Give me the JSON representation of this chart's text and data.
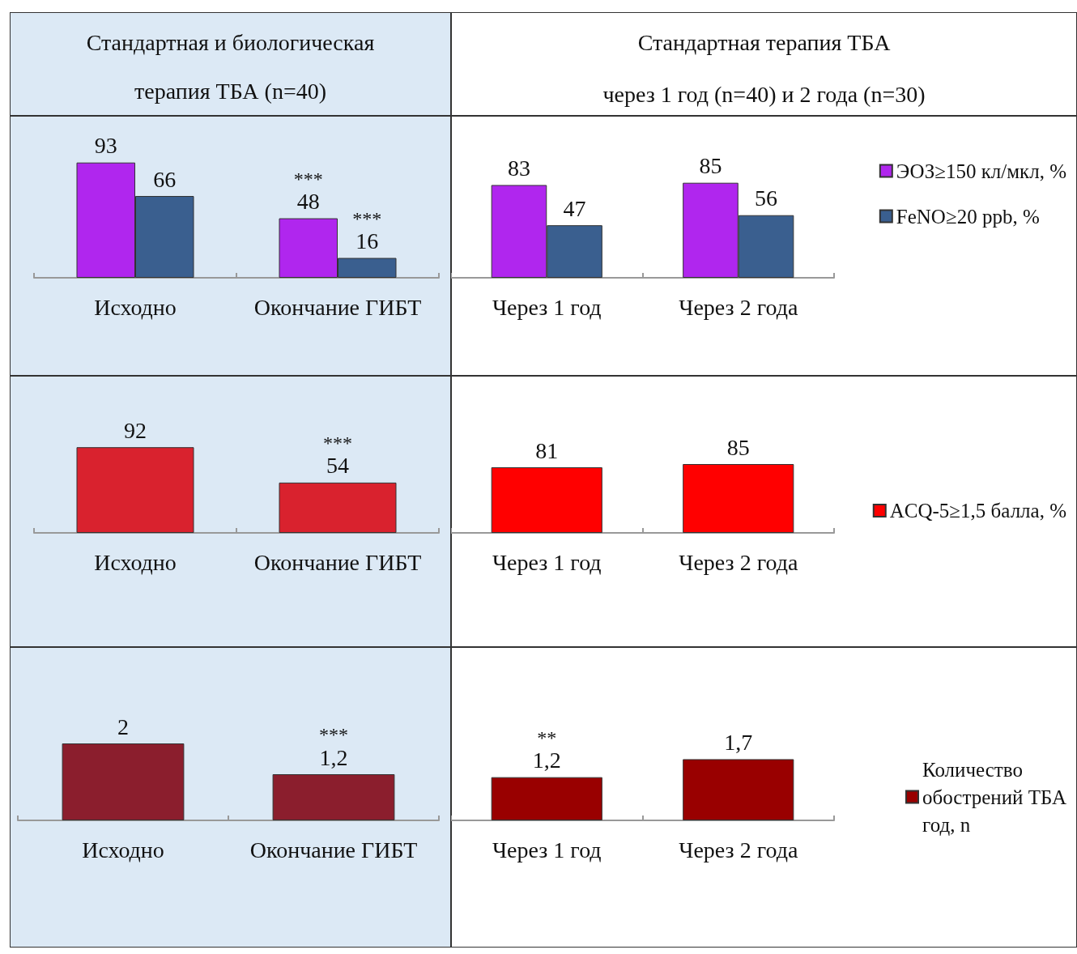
{
  "chart_data": [
    {
      "type": "bar",
      "title": "Стандартная и биологическая терапия ТБА (n=40)",
      "categories": [
        "Исходно",
        "Окончание ГИБТ"
      ],
      "data_labels": true,
      "series": [
        {
          "color": "#b026ee",
          "values": [
            93,
            48
          ]
        },
        {
          "color": "#3a5f8f",
          "values": [
            66,
            16
          ]
        }
      ],
      "annotations": [
        {
          "text": "***",
          "x": "Окончание ГИБТ",
          "y": 16
        },
        {
          "text": "***",
          "x": "Окончание ГИБТ",
          "y": 48
        }
      ]
    },
    {
      "type": "bar",
      "title": "Стандартная терапия ТБА",
      "subtitle": "через 1 год (n=40) и 2 года (n=30)",
      "categories": [
        "Через 1 год",
        "Через 2 года"
      ],
      "data_labels": true,
      "legend": "right",
      "series": [
        {
          "name": "ЭОЗ≥150 кл/мкл, %",
          "color": "#b026ee",
          "values": [
            83,
            85
          ]
        },
        {
          "name": "FeNO≥20 ppb, %",
          "color": "#3a5f8f",
          "values": [
            47,
            56
          ]
        }
      ]
    },
    {
      "type": "bar",
      "categories": [
        "Исходно",
        "Окончание ГИБТ"
      ],
      "data_labels": true,
      "series": [
        {
          "color": "#d9222e",
          "values": [
            92,
            54
          ]
        }
      ],
      "annotations": [
        {
          "text": "***",
          "x": "Окончание ГИБТ",
          "y": 54
        }
      ]
    },
    {
      "type": "bar",
      "categories": [
        "Через 1 год",
        "Через 2 года"
      ],
      "data_labels": true,
      "legend": "right",
      "series": [
        {
          "name": "ACQ-5≥1,5 балла, %",
          "color": "#ff0000",
          "values": [
            81,
            85
          ]
        }
      ]
    },
    {
      "type": "bar",
      "categories": [
        "Исходно",
        "Окончание ГИБТ"
      ],
      "series": [
        {
          "color": "#8b1e2d",
          "values": [
            2,
            1.2
          ],
          "value_labels": [
            "2",
            "1,2"
          ]
        }
      ],
      "annotations": [
        {
          "text": "***",
          "x": "Окончание ГИБТ",
          "y": 1.2
        }
      ]
    },
    {
      "type": "bar",
      "categories": [
        "Через 1 год",
        "Через 2 года"
      ],
      "legend": "right",
      "series": [
        {
          "name": "Количество обострений ТБА год, n",
          "color": "#990000",
          "values": [
            1.2,
            1.7
          ],
          "value_labels": [
            "1,2",
            "1,7"
          ]
        }
      ],
      "annotations": [
        {
          "text": "**",
          "x": "Через 1 год",
          "y": 1.2
        }
      ]
    }
  ]
}
